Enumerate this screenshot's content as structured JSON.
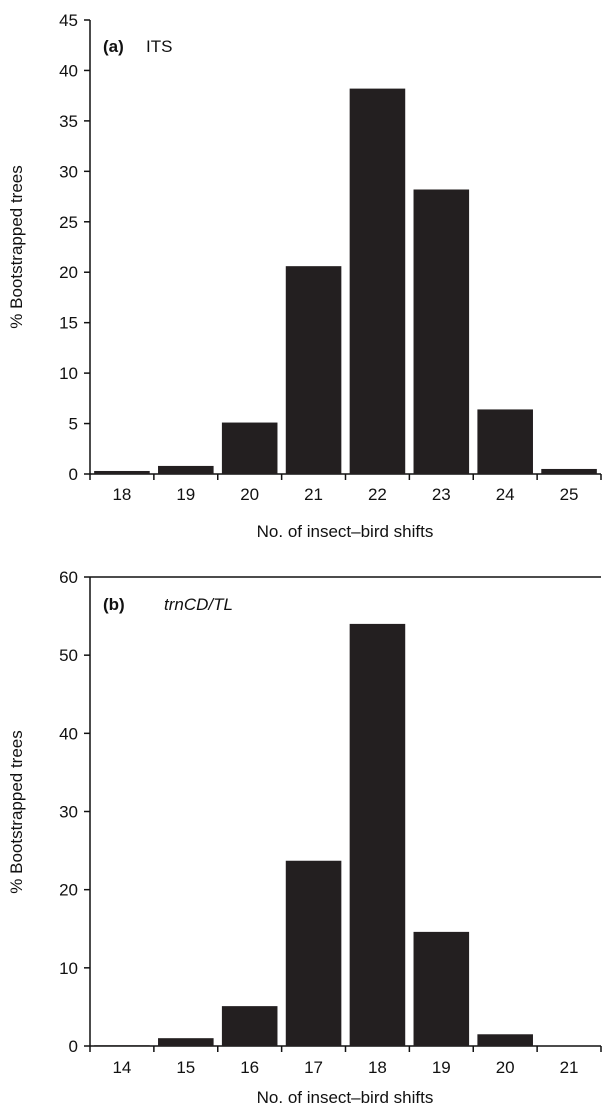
{
  "chart_data": [
    {
      "type": "bar",
      "panel_letter": "(a)",
      "panel_name": "ITS",
      "panel_name_italic": false,
      "categories": [
        "18",
        "19",
        "20",
        "21",
        "22",
        "23",
        "24",
        "25"
      ],
      "values": [
        0.3,
        0.8,
        5.1,
        20.6,
        38.2,
        28.2,
        6.4,
        0.5
      ],
      "xlabel": "No. of insect–bird shifts",
      "ylabel": "% Bootstrapped trees",
      "ylim": [
        0,
        45
      ],
      "yticks": [
        0,
        5,
        10,
        15,
        20,
        25,
        30,
        35,
        40,
        45
      ],
      "grid": false,
      "bar_color": "#231f20"
    },
    {
      "type": "bar",
      "panel_letter": "(b)",
      "panel_name": "trnCD/TL",
      "panel_name_italic": true,
      "categories": [
        "14",
        "15",
        "16",
        "17",
        "18",
        "19",
        "20",
        "21"
      ],
      "values": [
        0.1,
        1.0,
        5.1,
        23.7,
        54.0,
        14.6,
        1.5,
        0
      ],
      "xlabel": "No. of insect–bird shifts",
      "ylabel": "% Bootstrapped trees",
      "ylim": [
        0,
        60
      ],
      "yticks": [
        0,
        10,
        20,
        30,
        40,
        50,
        60
      ],
      "grid": false,
      "bar_color": "#231f20"
    }
  ]
}
